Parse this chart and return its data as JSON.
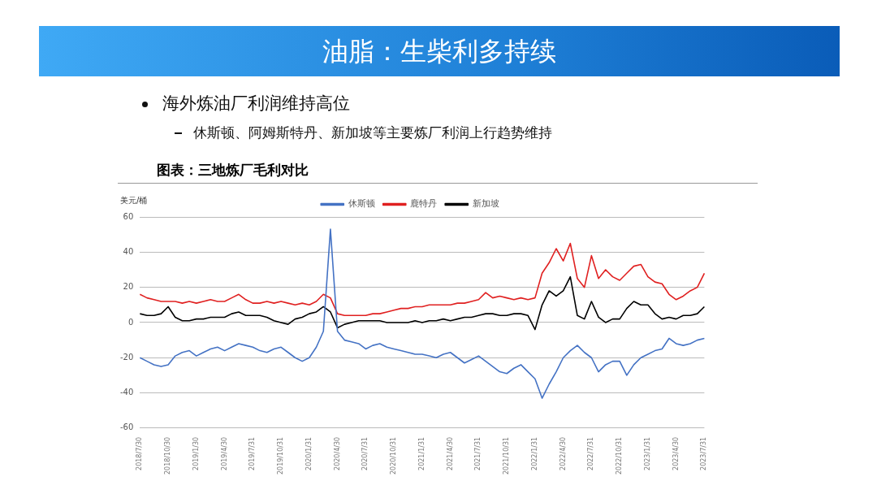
{
  "chart_data": {
    "type": "line",
    "title": "油脂：生柴利多持续",
    "subtitle": "图表：三地炼厂毛利对比",
    "annotations": [
      "海外炼油厂利润维持高位",
      "休斯顿、阿姆斯特丹、新加坡等主要炼厂利润上行趋势维持"
    ],
    "ylabel": "美元/桶",
    "categories": [
      "2018/7/30",
      null,
      null,
      null,
      "2018/10/30",
      null,
      null,
      null,
      "2019/1/30",
      null,
      null,
      null,
      "2019/4/30",
      null,
      null,
      null,
      "2019/7/31",
      null,
      null,
      null,
      "2019/10/31",
      null,
      null,
      null,
      "2020/1/31",
      null,
      null,
      null,
      "2020/4/30",
      null,
      null,
      null,
      "2020/7/31",
      null,
      null,
      null,
      "2020/10/31",
      null,
      null,
      null,
      "2021/1/31",
      null,
      null,
      null,
      "2021/4/30",
      null,
      null,
      null,
      "2021/7/31",
      null,
      null,
      null,
      "2021/10/31",
      null,
      null,
      null,
      "2022/1/31",
      null,
      null,
      null,
      "2022/4/30",
      null,
      null,
      null,
      "2022/7/31",
      null,
      null,
      null,
      "2022/10/31",
      null,
      null,
      null,
      "2023/1/31",
      null,
      null,
      null,
      "2023/4/30",
      null,
      null,
      null,
      "2023/7/31"
    ],
    "series": [
      {
        "name": "休斯顿",
        "color": "#4472c4",
        "values": [
          -20,
          -22,
          -24,
          -25,
          -24,
          -19,
          -17,
          -16,
          -19,
          -17,
          -15,
          -14,
          -16,
          -14,
          -12,
          -13,
          -14,
          -16,
          -17,
          -15,
          -14,
          -17,
          -20,
          -22,
          -20,
          -14,
          -5,
          53,
          -5,
          -10,
          -11,
          -12,
          -15,
          -13,
          -12,
          -14,
          -15,
          -16,
          -17,
          -18,
          -18,
          -19,
          -20,
          -18,
          -17,
          -20,
          -23,
          -21,
          -19,
          -22,
          -25,
          -28,
          -29,
          -26,
          -24,
          -28,
          -32,
          -43,
          -35,
          -28,
          -20,
          -16,
          -13,
          -17,
          -20,
          -28,
          -24,
          -22,
          -22,
          -30,
          -24,
          -20,
          -18,
          -16,
          -15,
          -9,
          -12,
          -13,
          -12,
          -10,
          -9
        ]
      },
      {
        "name": "鹿特丹",
        "color": "#e02020",
        "values": [
          16,
          14,
          13,
          12,
          12,
          12,
          11,
          12,
          11,
          12,
          13,
          12,
          12,
          14,
          16,
          13,
          11,
          11,
          12,
          11,
          12,
          11,
          10,
          11,
          10,
          12,
          16,
          14,
          5,
          4,
          4,
          4,
          4,
          5,
          5,
          6,
          7,
          8,
          8,
          9,
          9,
          10,
          10,
          10,
          10,
          11,
          11,
          12,
          13,
          17,
          14,
          15,
          14,
          13,
          14,
          13,
          14,
          28,
          34,
          42,
          35,
          45,
          25,
          20,
          38,
          25,
          30,
          26,
          24,
          28,
          32,
          33,
          26,
          23,
          22,
          16,
          13,
          15,
          18,
          20,
          28
        ]
      },
      {
        "name": "新加坡",
        "color": "#000000",
        "values": [
          5,
          4,
          4,
          5,
          9,
          3,
          1,
          1,
          2,
          2,
          3,
          3,
          3,
          5,
          6,
          4,
          4,
          4,
          3,
          1,
          0,
          -1,
          2,
          3,
          5,
          6,
          9,
          6,
          -3,
          -1,
          0,
          1,
          1,
          1,
          1,
          0,
          0,
          0,
          0,
          1,
          0,
          1,
          1,
          2,
          1,
          2,
          3,
          3,
          4,
          5,
          5,
          4,
          4,
          5,
          5,
          4,
          -4,
          10,
          18,
          15,
          18,
          26,
          4,
          2,
          12,
          3,
          0,
          2,
          2,
          8,
          12,
          10,
          10,
          5,
          2,
          3,
          2,
          4,
          4,
          5,
          9
        ]
      }
    ],
    "ylim": [
      -60,
      60
    ],
    "yticks": [
      -60,
      -40,
      -20,
      0,
      20,
      40,
      60
    ],
    "grid": "y",
    "legend": "top",
    "marker": "none"
  }
}
